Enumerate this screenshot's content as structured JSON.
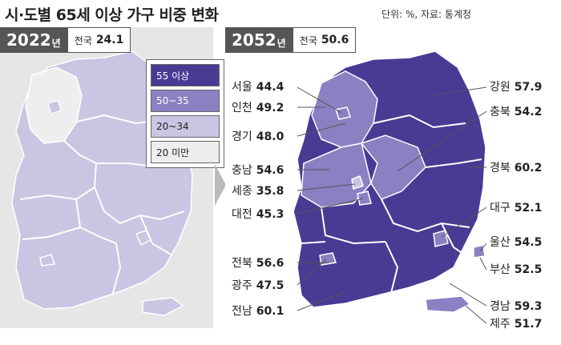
{
  "header": {
    "title": "시·도별 65세 이상 가구 비중 변화",
    "unit_source": "단위: %, 자료: 통계청"
  },
  "left": {
    "year": "2022",
    "year_suffix": "년",
    "national_label": "전국",
    "national_value": "24.1"
  },
  "right": {
    "year": "2052",
    "year_suffix": "년",
    "national_label": "전국",
    "national_value": "50.6"
  },
  "legend": [
    {
      "label": "55 이상",
      "color": "#4a3a94",
      "text_color": "#ffffff"
    },
    {
      "label": "50~35",
      "color": "#8a80c2",
      "text_color": "#ffffff"
    },
    {
      "label": "20~34",
      "color": "#cbc4e2",
      "text_color": "#222222"
    },
    {
      "label": "20 미만",
      "color": "#eeeeee",
      "text_color": "#222222"
    }
  ],
  "regions_2052": [
    {
      "name": "서울",
      "value": "44.4"
    },
    {
      "name": "인천",
      "value": "49.2"
    },
    {
      "name": "경기",
      "value": "48.0"
    },
    {
      "name": "충남",
      "value": "54.6"
    },
    {
      "name": "세종",
      "value": "35.8"
    },
    {
      "name": "대전",
      "value": "45.3"
    },
    {
      "name": "전북",
      "value": "56.6"
    },
    {
      "name": "광주",
      "value": "47.5"
    },
    {
      "name": "전남",
      "value": "60.1"
    },
    {
      "name": "강원",
      "value": "57.9"
    },
    {
      "name": "충북",
      "value": "54.2"
    },
    {
      "name": "경북",
      "value": "60.2"
    },
    {
      "name": "대구",
      "value": "52.1"
    },
    {
      "name": "울산",
      "value": "54.5"
    },
    {
      "name": "부산",
      "value": "52.5"
    },
    {
      "name": "경남",
      "value": "59.3"
    },
    {
      "name": "제주",
      "value": "51.7"
    }
  ]
}
